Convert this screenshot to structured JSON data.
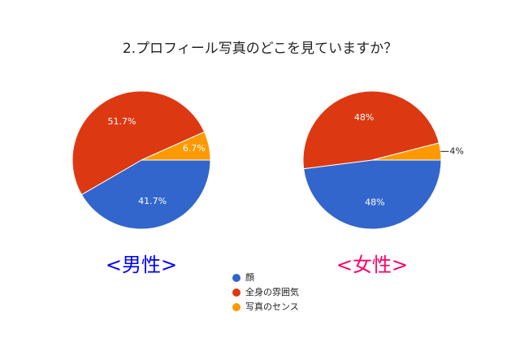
{
  "chart_data": [
    {
      "type": "pie",
      "title": "2.プロフィール写真のどこを見ていますか？",
      "subtitle": "<男性>",
      "subtitle_color": "#0000ff",
      "categories": [
        "顔",
        "全身の雰囲気",
        "写真のセンス"
      ],
      "values": [
        41.7,
        51.7,
        6.7
      ],
      "value_labels": [
        "41.7%",
        "51.7%",
        "6.7%"
      ],
      "colors": [
        "#3366cc",
        "#dc3912",
        "#ff9900"
      ]
    },
    {
      "type": "pie",
      "subtitle": "<女性>",
      "subtitle_color": "#ff0066",
      "categories": [
        "顔",
        "全身の雰囲気",
        "写真のセンス"
      ],
      "values": [
        48,
        48,
        4
      ],
      "value_labels": [
        "48%",
        "48%",
        "4%"
      ],
      "colors": [
        "#3366cc",
        "#dc3912",
        "#ff9900"
      ]
    }
  ]
}
